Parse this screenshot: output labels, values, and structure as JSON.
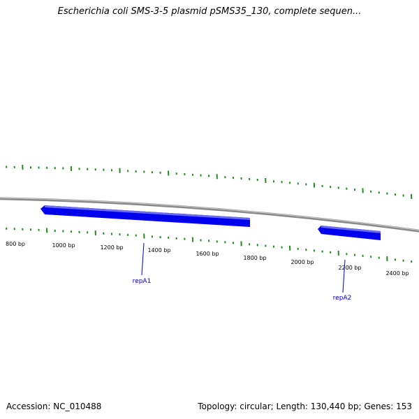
{
  "title": "Escherichia coli SMS-3-5 plasmid pSMS35_130, complete sequen...",
  "footer": {
    "accession": "Accession: NC_010488",
    "summary": "Topology: circular; Length: 130,440 bp; Genes: 153"
  },
  "colors": {
    "backbone": "#8a8a8a",
    "ticks": "#228b22",
    "gene_fill": "#0000ee",
    "gene_label": "#0000cc"
  },
  "scale_labels": [
    "800 bp",
    "1000 bp",
    "1200 bp",
    "1400 bp",
    "1600 bp",
    "1800 bp",
    "2000 bp",
    "2200 bp",
    "2400 bp"
  ],
  "genes": [
    {
      "name": "repA1",
      "start_bp": 1003,
      "end_bp": 1888,
      "strand": "minus"
    },
    {
      "name": "repA2",
      "start_bp": 2112,
      "end_bp": 2370,
      "strand": "minus"
    }
  ]
}
